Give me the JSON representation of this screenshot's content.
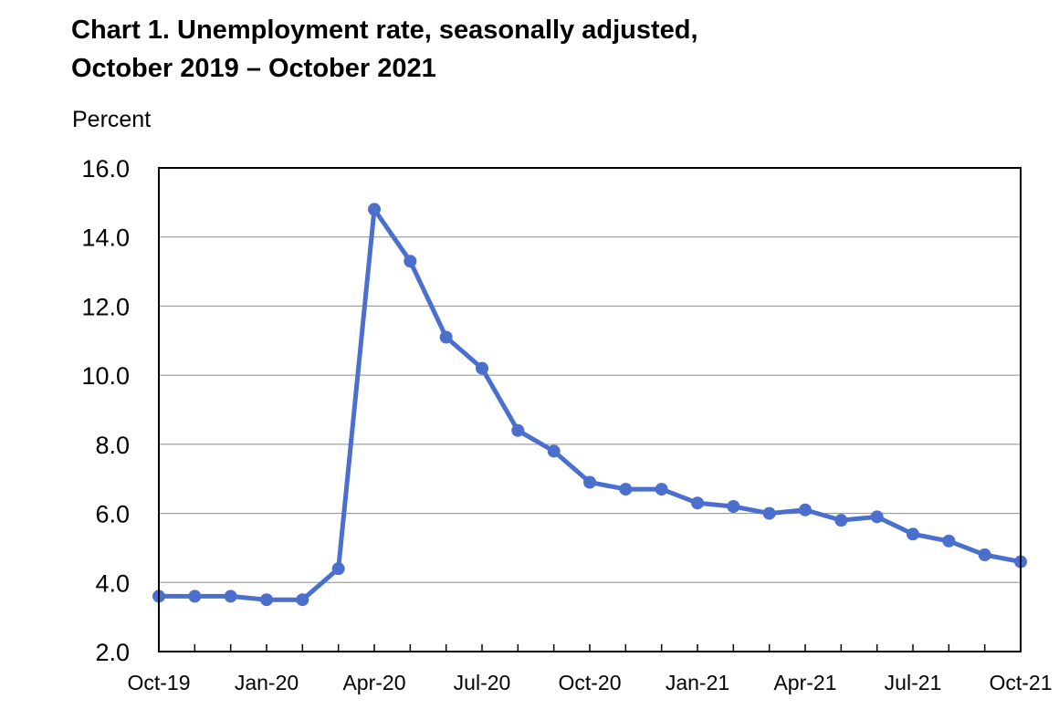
{
  "title_line1": "Chart 1. Unemployment rate, seasonally adjusted,",
  "title_line2": "October 2019 – October 2021",
  "colors": {
    "series": "#4A6FCC",
    "grid": "#8C8C8C",
    "frame": "#000000"
  },
  "chart_data": {
    "type": "line",
    "title": "Chart 1. Unemployment rate, seasonally adjusted, October 2019 – October 2021",
    "xlabel": "",
    "ylabel": "Percent",
    "ylim": [
      2.0,
      16.0
    ],
    "y_ticks": [
      "2.0",
      "4.0",
      "6.0",
      "8.0",
      "10.0",
      "12.0",
      "14.0",
      "16.0"
    ],
    "grid": true,
    "legend": "none",
    "x": [
      "2019-10",
      "2019-11",
      "2019-12",
      "2020-01",
      "2020-02",
      "2020-03",
      "2020-04",
      "2020-05",
      "2020-06",
      "2020-07",
      "2020-08",
      "2020-09",
      "2020-10",
      "2020-11",
      "2020-12",
      "2021-01",
      "2021-02",
      "2021-03",
      "2021-04",
      "2021-05",
      "2021-06",
      "2021-07",
      "2021-08",
      "2021-09",
      "2021-10"
    ],
    "x_tick_labels": [
      "Oct-19",
      "Jan-20",
      "Apr-20",
      "Jul-20",
      "Oct-20",
      "Jan-21",
      "Apr-21",
      "Jul-21",
      "Oct-21"
    ],
    "series": [
      {
        "values": [
          3.6,
          3.6,
          3.6,
          3.5,
          3.5,
          4.4,
          14.8,
          13.3,
          11.1,
          10.2,
          8.4,
          7.8,
          6.9,
          6.7,
          6.7,
          6.3,
          6.2,
          6.0,
          6.1,
          5.8,
          5.9,
          5.4,
          5.2,
          4.8,
          4.6
        ]
      }
    ]
  }
}
